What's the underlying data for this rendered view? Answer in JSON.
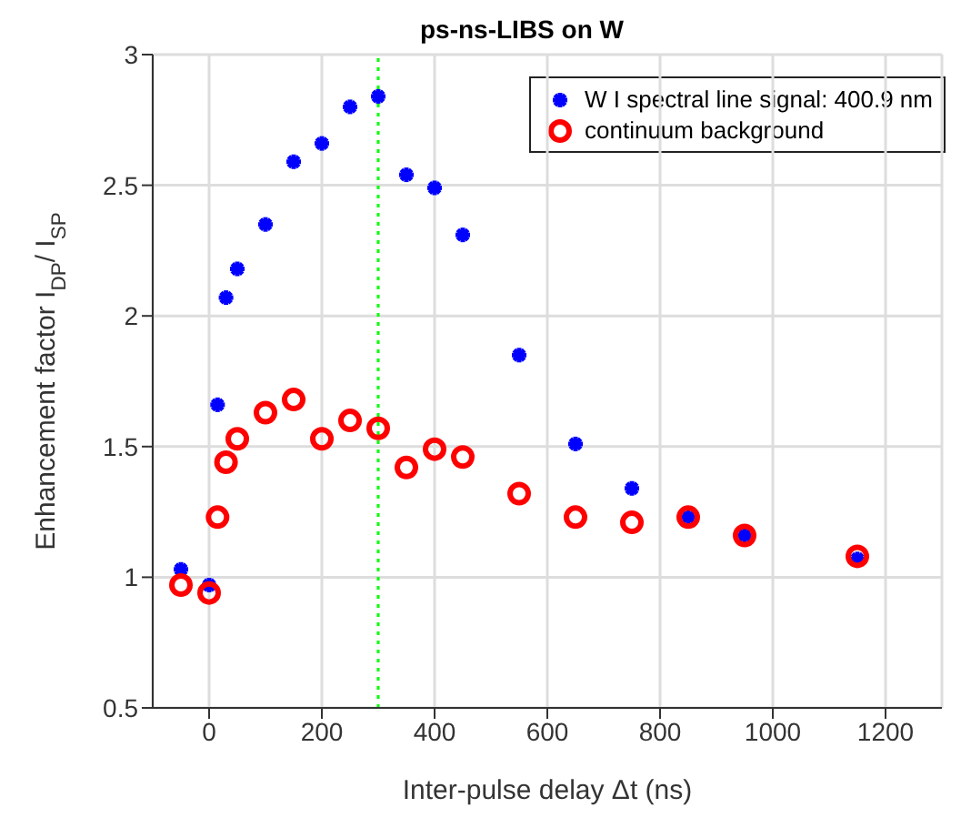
{
  "chart_data": {
    "type": "scatter",
    "title": "ps-ns-LIBS on W",
    "xlabel": "Inter-pulse delay Δt (ns)",
    "ylabel": "Enhancement factor I$_{DP}$/ I$_{SP}$",
    "x": [
      -50,
      0,
      15,
      30,
      50,
      100,
      150,
      200,
      250,
      300,
      350,
      400,
      450,
      550,
      650,
      750,
      850,
      950,
      1150
    ],
    "series": [
      {
        "name": "W I spectral line signal: 400.9 nm",
        "color": "#0000ff",
        "marker": "cross",
        "values": [
          1.03,
          0.97,
          1.66,
          2.07,
          2.18,
          2.35,
          2.59,
          2.66,
          2.8,
          2.84,
          2.54,
          2.49,
          2.31,
          1.85,
          1.51,
          1.34,
          1.23,
          1.16,
          1.07
        ]
      },
      {
        "name": "continuum background",
        "color": "#ff0000",
        "marker": "circle",
        "values": [
          0.97,
          0.94,
          1.23,
          1.44,
          1.53,
          1.63,
          1.68,
          1.53,
          1.6,
          1.57,
          1.42,
          1.49,
          1.46,
          1.32,
          1.23,
          1.21,
          1.23,
          1.16,
          1.08
        ]
      }
    ],
    "xlim": [
      -100,
      1300
    ],
    "xticks": [
      0,
      200,
      400,
      600,
      800,
      1000,
      1200
    ],
    "ylim": [
      0.5,
      3
    ],
    "yticks": [
      0.5,
      1,
      1.5,
      2,
      2.5,
      3
    ],
    "ref_lines": [
      {
        "axis": "x",
        "value": 300,
        "color": "#00ff00",
        "line_style": "dotted"
      }
    ],
    "grid": true,
    "legend": "top right"
  }
}
